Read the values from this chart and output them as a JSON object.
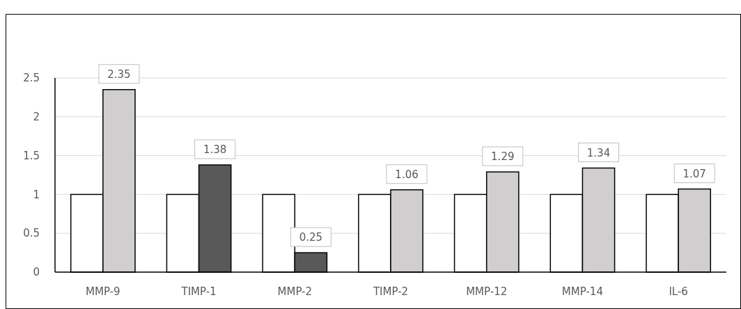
{
  "chart_data": {
    "type": "bar",
    "categories": [
      "MMP-9",
      "TIMP-1",
      "MMP-2",
      "TIMP-2",
      "MMP-12",
      "MMP-14",
      "IL-6"
    ],
    "series": [
      {
        "color": "#ffffff",
        "values": [
          1,
          1,
          1,
          1,
          1,
          1,
          1
        ]
      },
      {
        "colors": [
          "#d0cece",
          "#595959",
          "#595959",
          "#d0cece",
          "#d0cece",
          "#d0cece",
          "#d0cece"
        ],
        "values": [
          2.35,
          1.38,
          0.25,
          1.06,
          1.29,
          1.34,
          1.07
        ],
        "value_labels": [
          "2.35",
          "1.38",
          "0.25",
          "1.06",
          "1.29",
          "1.34",
          "1.07"
        ]
      }
    ],
    "ylim": [
      0,
      2.5
    ],
    "yticks": [
      0,
      0.5,
      1,
      1.5,
      2,
      2.5
    ],
    "grid": "y"
  }
}
